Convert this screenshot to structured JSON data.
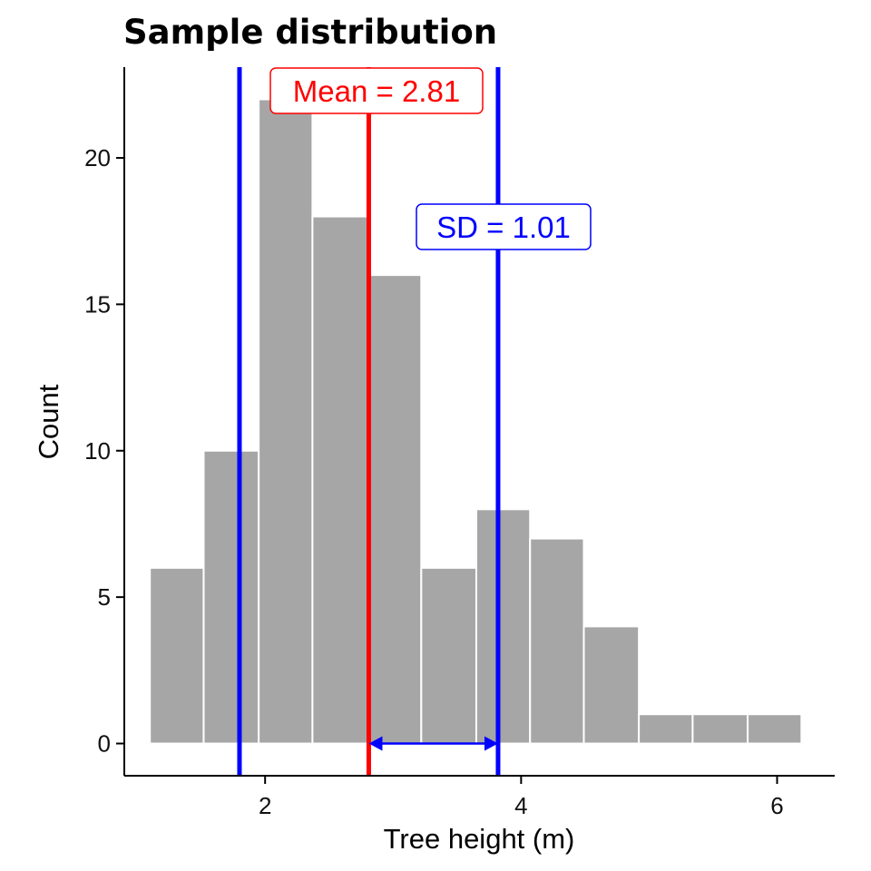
{
  "chart_data": {
    "type": "bar",
    "title": "Sample distribution",
    "xlabel": "Tree height (m)",
    "ylabel": "Count",
    "x_ticks": [
      2,
      4,
      6
    ],
    "y_ticks": [
      0,
      5,
      10,
      15,
      20
    ],
    "xlim": [
      0.9,
      6.45
    ],
    "ylim": [
      -1.1,
      23.1
    ],
    "grid": false,
    "bins": [
      {
        "x0": 1.1,
        "x1": 1.52,
        "count": 6
      },
      {
        "x0": 1.52,
        "x1": 1.95,
        "count": 10
      },
      {
        "x0": 1.95,
        "x1": 2.37,
        "count": 22
      },
      {
        "x0": 2.37,
        "x1": 2.8,
        "count": 18
      },
      {
        "x0": 2.8,
        "x1": 3.22,
        "count": 16
      },
      {
        "x0": 3.22,
        "x1": 3.65,
        "count": 6
      },
      {
        "x0": 3.65,
        "x1": 4.07,
        "count": 8
      },
      {
        "x0": 4.07,
        "x1": 4.49,
        "count": 7
      },
      {
        "x0": 4.49,
        "x1": 4.92,
        "count": 4
      },
      {
        "x0": 4.92,
        "x1": 5.34,
        "count": 1
      },
      {
        "x0": 5.34,
        "x1": 5.77,
        "count": 1
      },
      {
        "x0": 5.77,
        "x1": 6.19,
        "count": 1
      }
    ],
    "mean": 2.81,
    "sd": 1.01,
    "mean_label": "Mean = 2.81",
    "sd_label": "SD = 1.01",
    "colors": {
      "bar": "#a6a6a6",
      "mean": "#ff0000",
      "sd": "#0000ff"
    }
  }
}
